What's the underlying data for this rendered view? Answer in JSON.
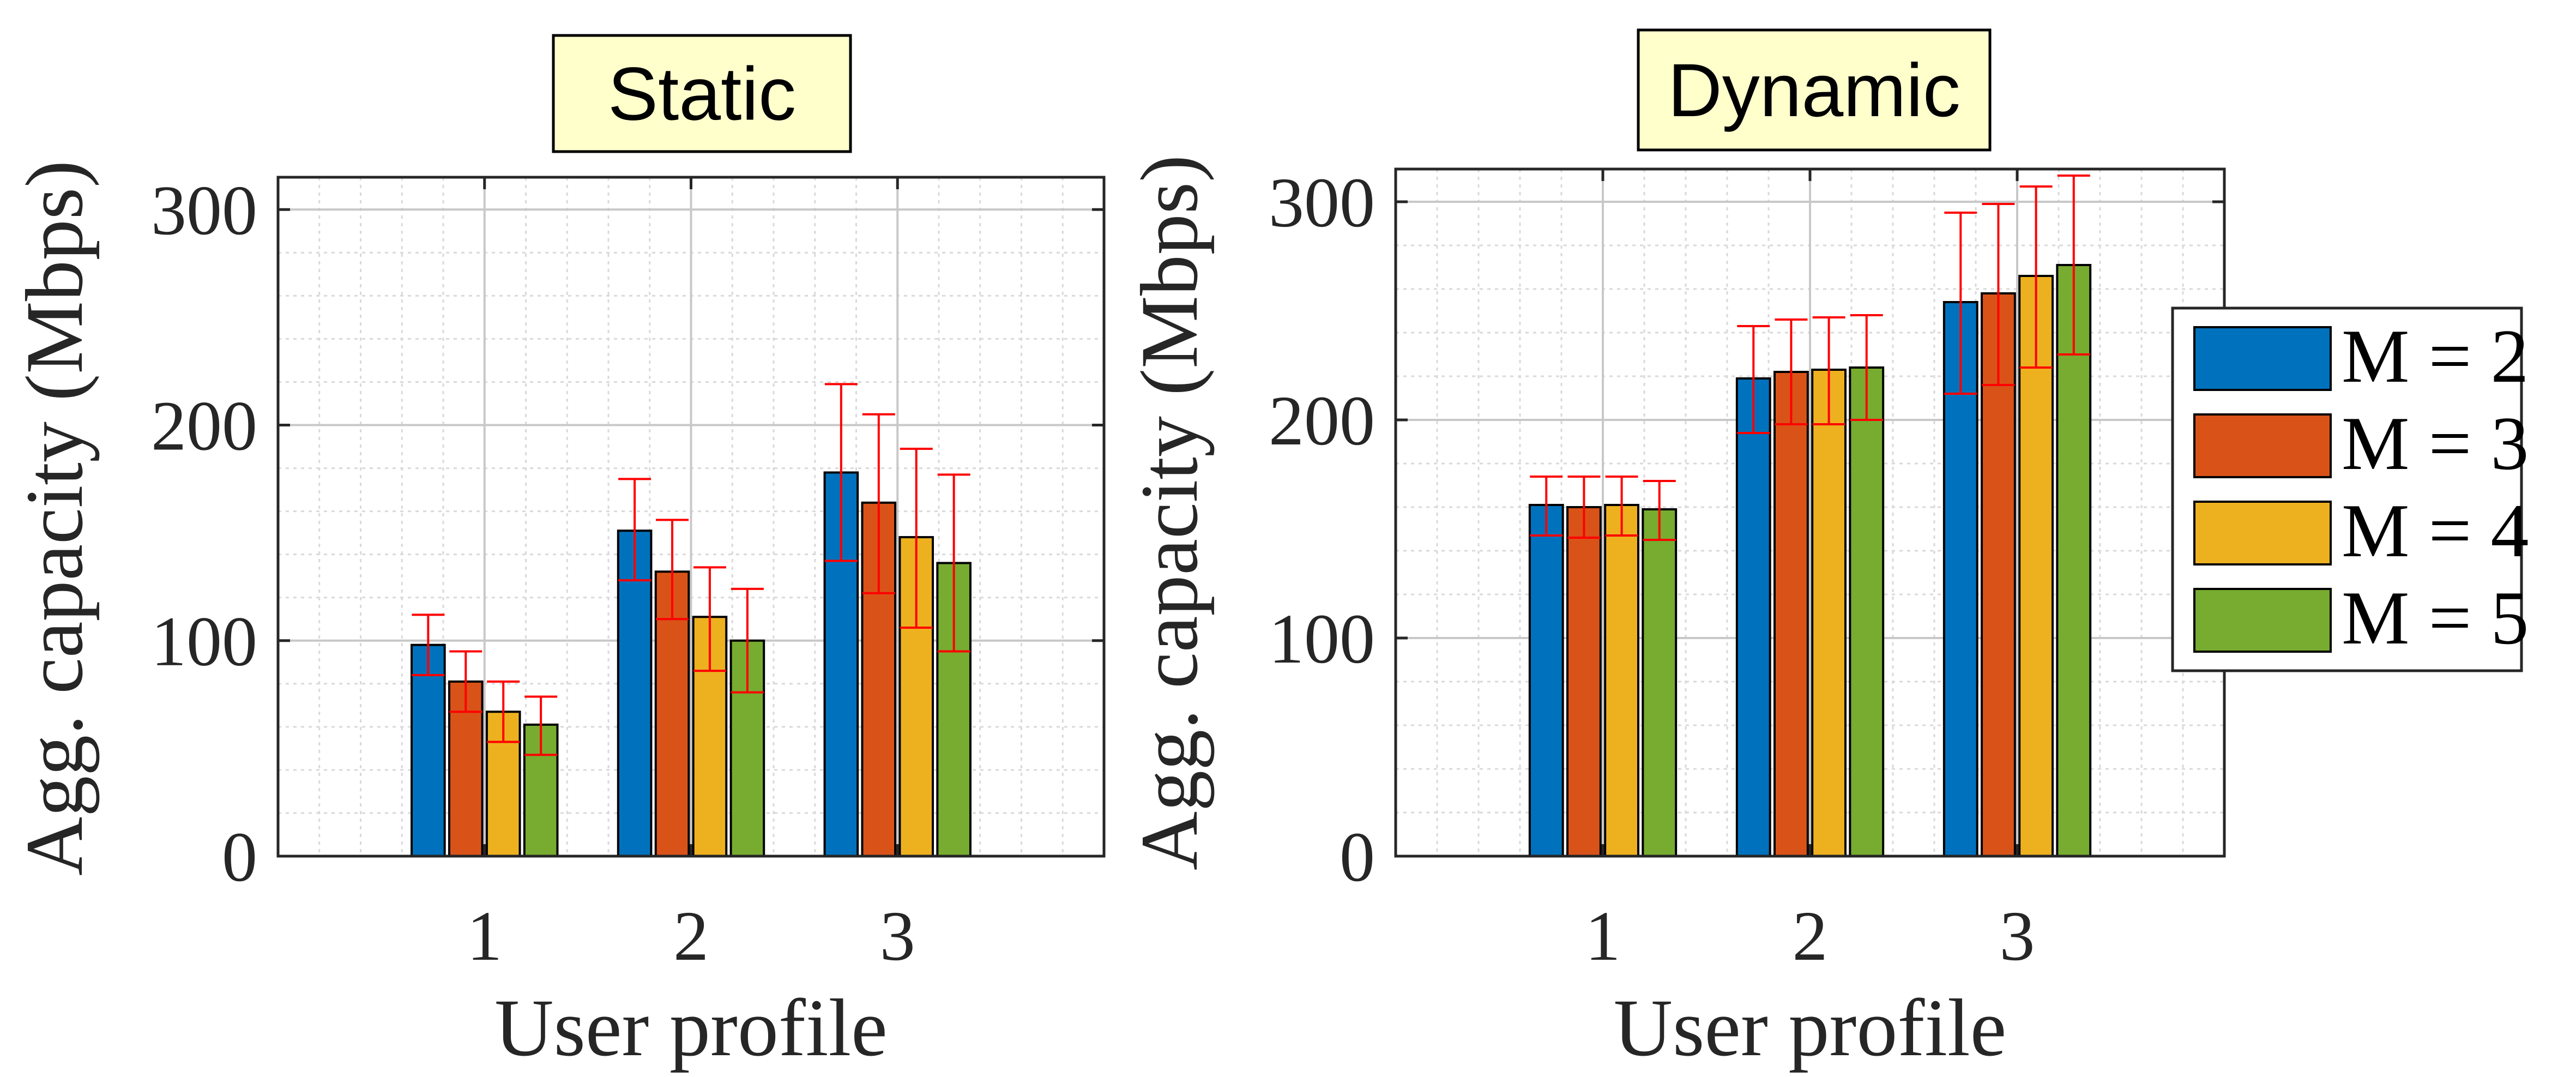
{
  "chart_data": [
    {
      "type": "bar",
      "title": "Static",
      "xlabel": "User profile",
      "ylabel": "Agg. capacity (Mbps)",
      "categories": [
        "1",
        "2",
        "3"
      ],
      "ylim": [
        0,
        315
      ],
      "yticks": [
        0,
        100,
        200,
        300
      ],
      "grid": true,
      "minor_grid": true,
      "series": [
        {
          "name": "M = 2",
          "values": [
            98,
            151,
            178
          ],
          "err_low": [
            84,
            128,
            137
          ],
          "err_high": [
            112,
            175,
            219
          ]
        },
        {
          "name": "M = 3",
          "values": [
            81,
            132,
            164
          ],
          "err_low": [
            67,
            110,
            122
          ],
          "err_high": [
            95,
            156,
            205
          ]
        },
        {
          "name": "M = 4",
          "values": [
            67,
            111,
            148
          ],
          "err_low": [
            53,
            86,
            106
          ],
          "err_high": [
            81,
            134,
            189
          ]
        },
        {
          "name": "M = 5",
          "values": [
            61,
            100,
            136
          ],
          "err_low": [
            47,
            76,
            95
          ],
          "err_high": [
            74,
            124,
            177
          ]
        }
      ]
    },
    {
      "type": "bar",
      "title": "Dynamic",
      "xlabel": "User profile",
      "ylabel": "Agg. capacity (Mbps)",
      "categories": [
        "1",
        "2",
        "3"
      ],
      "ylim": [
        0,
        315
      ],
      "yticks": [
        0,
        100,
        200,
        300
      ],
      "grid": true,
      "minor_grid": true,
      "legend": "outside-right",
      "series": [
        {
          "name": "M = 2",
          "values": [
            161,
            219,
            254
          ],
          "err_low": [
            147,
            194,
            212
          ],
          "err_high": [
            174,
            243,
            295
          ]
        },
        {
          "name": "M = 3",
          "values": [
            160,
            222,
            258
          ],
          "err_low": [
            146,
            198,
            216
          ],
          "err_high": [
            174,
            246,
            299
          ]
        },
        {
          "name": "M = 4",
          "values": [
            161,
            223,
            266
          ],
          "err_low": [
            147,
            198,
            224
          ],
          "err_high": [
            174,
            247,
            307
          ]
        },
        {
          "name": "M = 5",
          "values": [
            159,
            224,
            271
          ],
          "err_low": [
            145,
            200,
            230
          ],
          "err_high": [
            172,
            248,
            312
          ]
        }
      ]
    }
  ],
  "colors": {
    "series": [
      "#0072BD",
      "#D95319",
      "#EDB120",
      "#77AC30"
    ],
    "errorbar": "#FF0000",
    "title_box": "#FFFFCC",
    "grid": "#D9D9D9",
    "axis": "#262626"
  }
}
